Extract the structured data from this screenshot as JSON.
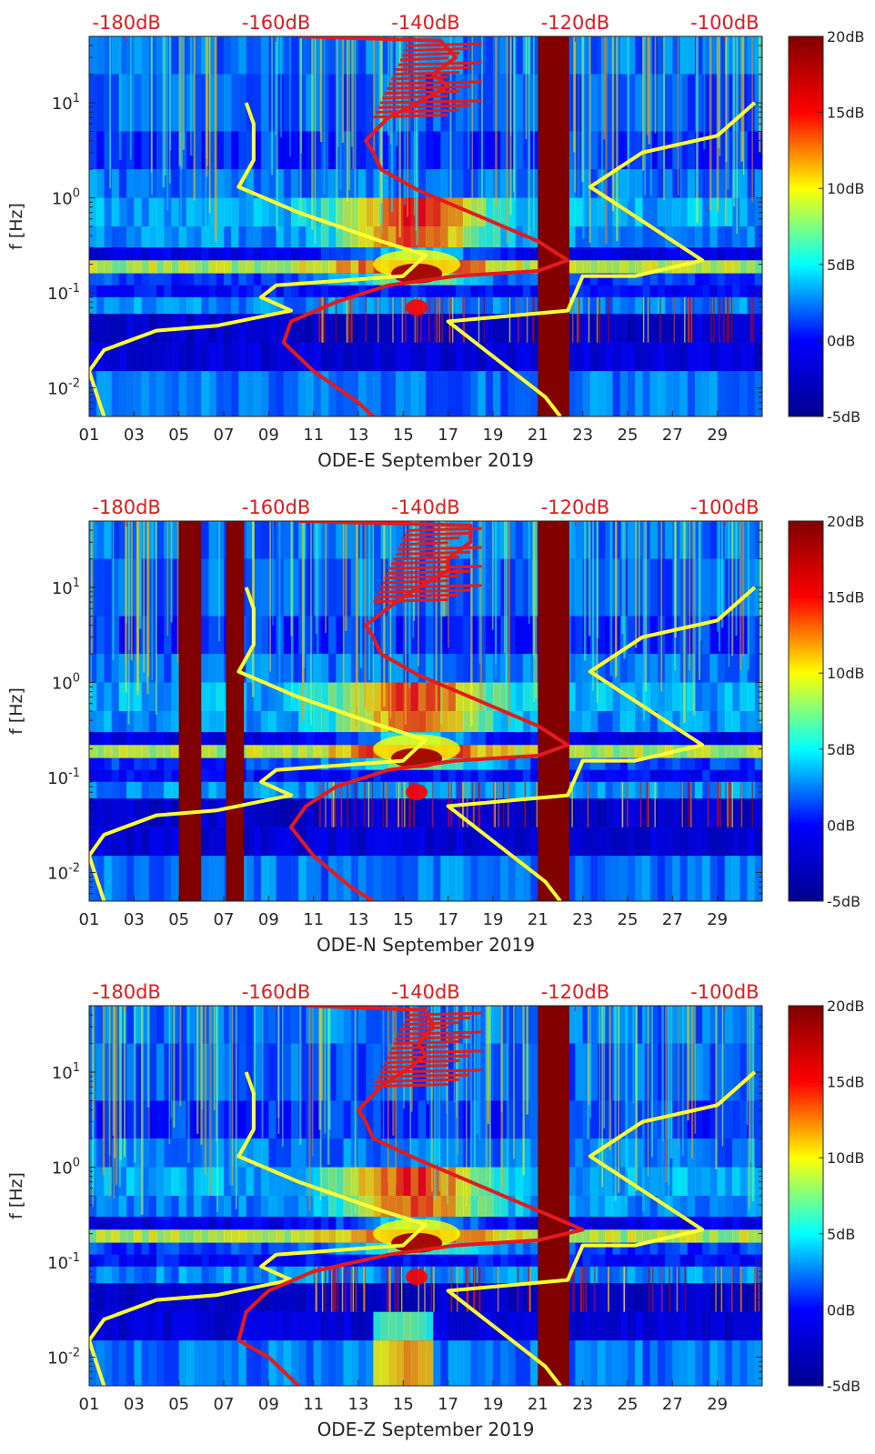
{
  "chart_data": {
    "type": "heatmap",
    "description_units": {
      "x": "day of month",
      "y": "f [Hz]",
      "color": "dB"
    },
    "shared": {
      "ylabel": "f [Hz]",
      "yticks": [
        {
          "value": 0.01,
          "base": "10",
          "exp": "-2"
        },
        {
          "value": 0.1,
          "base": "10",
          "exp": "-1"
        },
        {
          "value": 1,
          "base": "10",
          "exp": "0"
        },
        {
          "value": 10,
          "base": "10",
          "exp": "1"
        }
      ],
      "ylim": [
        0.005,
        50
      ],
      "xlim": [
        1,
        31
      ],
      "xticks": [
        {
          "value": 1,
          "label": "01"
        },
        {
          "value": 3,
          "label": "03"
        },
        {
          "value": 5,
          "label": "05"
        },
        {
          "value": 7,
          "label": "07"
        },
        {
          "value": 9,
          "label": "09"
        },
        {
          "value": 11,
          "label": "11"
        },
        {
          "value": 13,
          "label": "13"
        },
        {
          "value": 15,
          "label": "15"
        },
        {
          "value": 17,
          "label": "17"
        },
        {
          "value": 19,
          "label": "19"
        },
        {
          "value": 21,
          "label": "21"
        },
        {
          "value": 23,
          "label": "23"
        },
        {
          "value": 25,
          "label": "25"
        },
        {
          "value": 27,
          "label": "27"
        },
        {
          "value": 29,
          "label": "29"
        }
      ],
      "top_axis": {
        "range_dB": [
          -185,
          -95
        ],
        "ticks": [
          {
            "value": -180,
            "label": "-180dB"
          },
          {
            "value": -160,
            "label": "-160dB"
          },
          {
            "value": -140,
            "label": "-140dB"
          },
          {
            "value": -120,
            "label": "-120dB"
          },
          {
            "value": -100,
            "label": "-100dB"
          }
        ]
      },
      "colorbar": {
        "range": [
          -5,
          20
        ],
        "ticks": [
          {
            "value": 20,
            "label": "20dB"
          },
          {
            "value": 15,
            "label": "15dB"
          },
          {
            "value": 10,
            "label": "10dB"
          },
          {
            "value": 5,
            "label": "5dB"
          },
          {
            "value": 0,
            "label": "0dB"
          },
          {
            "value": -5,
            "label": "-5dB"
          }
        ],
        "colors": [
          "#00008f",
          "#0000ff",
          "#00ffff",
          "#ffff00",
          "#ff0000",
          "#800000"
        ]
      },
      "curves": {
        "yellow_model": {
          "color": "#ffff33",
          "points_dB_f": [
            [
              -164,
              10
            ],
            [
              -163,
              6
            ],
            [
              -163,
              2.5
            ],
            [
              -165,
              1.3
            ],
            [
              -157,
              0.7
            ],
            [
              -146,
              0.35
            ],
            [
              -140,
              0.25
            ],
            [
              -143,
              0.15
            ],
            [
              -160,
              0.12
            ],
            [
              -162,
              0.09
            ],
            [
              -158,
              0.065
            ],
            [
              -168,
              0.045
            ],
            [
              -176,
              0.04
            ],
            [
              -183,
              0.025
            ],
            [
              -185,
              0.015
            ],
            [
              -183,
              0.005
            ]
          ]
        },
        "yellow_model_right": {
          "color": "#ffff33",
          "points_dB_f": [
            [
              -96,
              10
            ],
            [
              -101,
              4.5
            ],
            [
              -111,
              3
            ],
            [
              -118,
              1.3
            ],
            [
              -103,
              0.22
            ],
            [
              -112,
              0.15
            ],
            [
              -119,
              0.15
            ],
            [
              -121,
              0.065
            ],
            [
              -137,
              0.05
            ],
            [
              -124,
              0.008
            ],
            [
              -122,
              0.005
            ]
          ]
        }
      }
    },
    "panels": [
      {
        "name": "ODE-E",
        "xlabel": "ODE-E September 2019",
        "gaps_days": [
          [
            21.0,
            22.4
          ]
        ],
        "red_psd_dB_f": [
          [
            -157,
            50
          ],
          [
            -138,
            45
          ],
          [
            -136,
            30
          ],
          [
            -139,
            20
          ],
          [
            -137,
            15
          ],
          [
            -141,
            10
          ],
          [
            -145,
            7
          ],
          [
            -148,
            4
          ],
          [
            -147,
            3
          ],
          [
            -146,
            2
          ],
          [
            -141,
            1.2
          ],
          [
            -132,
            0.6
          ],
          [
            -125,
            0.35
          ],
          [
            -121,
            0.22
          ],
          [
            -125,
            0.17
          ],
          [
            -136,
            0.15
          ],
          [
            -145,
            0.12
          ],
          [
            -152,
            0.08
          ],
          [
            -158,
            0.05
          ],
          [
            -159,
            0.03
          ],
          [
            -155,
            0.015
          ],
          [
            -149,
            0.007
          ],
          [
            -147,
            0.005
          ]
        ]
      },
      {
        "name": "ODE-N",
        "xlabel": "ODE-N September 2019",
        "gaps_days": [
          [
            5.0,
            6.0
          ],
          [
            7.1,
            7.9
          ],
          [
            21.0,
            22.4
          ]
        ],
        "red_psd_dB_f": [
          [
            -157,
            50
          ],
          [
            -134,
            45
          ],
          [
            -134,
            30
          ],
          [
            -137,
            20
          ],
          [
            -137,
            15
          ],
          [
            -141,
            10
          ],
          [
            -144,
            7
          ],
          [
            -148,
            4
          ],
          [
            -147,
            3
          ],
          [
            -146,
            2
          ],
          [
            -141,
            1.2
          ],
          [
            -132,
            0.6
          ],
          [
            -125,
            0.35
          ],
          [
            -121,
            0.22
          ],
          [
            -125,
            0.17
          ],
          [
            -136,
            0.15
          ],
          [
            -145,
            0.12
          ],
          [
            -152,
            0.08
          ],
          [
            -156,
            0.05
          ],
          [
            -158,
            0.03
          ],
          [
            -155,
            0.015
          ],
          [
            -150,
            0.007
          ],
          [
            -147,
            0.005
          ]
        ]
      },
      {
        "name": "ODE-Z",
        "xlabel": "ODE-Z September 2019",
        "gaps_days": [
          [
            21.0,
            22.4
          ]
        ],
        "red_psd_dB_f": [
          [
            -156,
            50
          ],
          [
            -140,
            45
          ],
          [
            -139,
            30
          ],
          [
            -141,
            20
          ],
          [
            -140,
            15
          ],
          [
            -143,
            10
          ],
          [
            -146,
            7
          ],
          [
            -149,
            4
          ],
          [
            -148,
            3
          ],
          [
            -147,
            2
          ],
          [
            -141,
            1.2
          ],
          [
            -132,
            0.6
          ],
          [
            -125,
            0.35
          ],
          [
            -119,
            0.22
          ],
          [
            -125,
            0.17
          ],
          [
            -136,
            0.15
          ],
          [
            -145,
            0.12
          ],
          [
            -155,
            0.08
          ],
          [
            -161,
            0.05
          ],
          [
            -164,
            0.03
          ],
          [
            -165,
            0.015
          ],
          [
            -161,
            0.01
          ],
          [
            -157,
            0.005
          ]
        ]
      }
    ]
  }
}
